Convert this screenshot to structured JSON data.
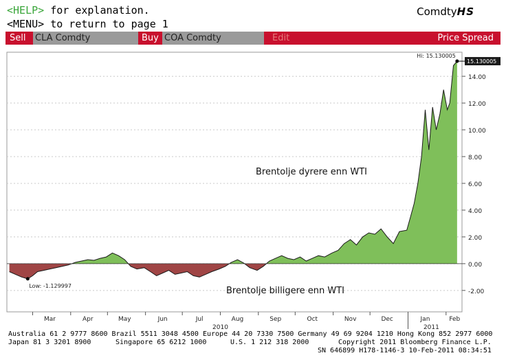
{
  "header": {
    "help_key": "<HELP>",
    "help_text": " for explanation.",
    "menu_text": "<MENU> to return to page 1",
    "ticker_prefix": "Comdty",
    "ticker_func": "HS"
  },
  "command_bar": {
    "sell_label": "Sell",
    "sell_security": "CLA Comdty",
    "buy_label": "Buy",
    "buy_security": "COA Comdty",
    "edit_label": "Edit",
    "title": "Price Spread"
  },
  "chart_data": {
    "type": "area",
    "x_unit": "date",
    "x_labels": [
      "Mar",
      "Apr",
      "May",
      "Jun",
      "Jul",
      "Aug",
      "Sep",
      "Oct",
      "Nov",
      "Dec",
      "Jan",
      "Feb"
    ],
    "year_labels": [
      "2010",
      "2011"
    ],
    "ylim": [
      -3.6,
      15.8
    ],
    "y_ticks": [
      "14.00",
      "12.00",
      "10.00",
      "8.00",
      "6.00",
      "4.00",
      "2.00",
      "0.00",
      "-2.00"
    ],
    "hi_label": "Hi: 15.130005",
    "last_value_label": "15.130005",
    "low_label": "Low: -1.129997",
    "annotation_above": "Brentolje dyrere enn WTI",
    "annotation_below": "Brentolje billigere enn WTI",
    "colors": {
      "positive": "#7fbf5a",
      "negative": "#a04545",
      "line": "#1a1a1a",
      "grid": "#c8c8c8"
    },
    "series": [
      {
        "x": [
          "2010-02-10",
          "2010-02-15",
          "2010-02-20",
          "2010-02-25",
          "2010-03-01",
          "2010-03-05",
          "2010-03-10",
          "2010-03-15",
          "2010-03-20",
          "2010-03-25",
          "2010-03-30",
          "2010-04-05",
          "2010-04-10",
          "2010-04-15",
          "2010-04-20",
          "2010-04-25",
          "2010-04-30",
          "2010-05-05",
          "2010-05-10",
          "2010-05-15",
          "2010-05-20",
          "2010-05-25",
          "2010-05-31",
          "2010-06-05",
          "2010-06-10",
          "2010-06-15",
          "2010-06-20",
          "2010-06-25",
          "2010-06-30",
          "2010-07-05",
          "2010-07-10",
          "2010-07-15",
          "2010-07-20",
          "2010-07-25",
          "2010-07-31",
          "2010-08-05",
          "2010-08-10",
          "2010-08-15",
          "2010-08-20",
          "2010-08-25",
          "2010-08-31",
          "2010-09-05",
          "2010-09-10",
          "2010-09-15",
          "2010-09-20",
          "2010-09-25",
          "2010-09-30",
          "2010-10-05",
          "2010-10-10",
          "2010-10-15",
          "2010-10-20",
          "2010-10-25",
          "2010-10-31",
          "2010-11-05",
          "2010-11-10",
          "2010-11-15",
          "2010-11-20",
          "2010-11-25",
          "2010-11-30",
          "2010-12-05",
          "2010-12-10",
          "2010-12-15",
          "2010-12-20",
          "2010-12-25",
          "2010-12-31",
          "2011-01-03",
          "2011-01-06",
          "2011-01-09",
          "2011-01-12",
          "2011-01-15",
          "2011-01-18",
          "2011-01-21",
          "2011-01-24",
          "2011-01-27",
          "2011-01-30",
          "2011-02-02",
          "2011-02-04",
          "2011-02-07",
          "2011-02-10"
        ],
        "y": [
          -0.6,
          -0.8,
          -1.0,
          -1.13,
          -0.9,
          -0.6,
          -0.5,
          -0.4,
          -0.3,
          -0.2,
          -0.1,
          0.1,
          0.2,
          0.3,
          0.25,
          0.4,
          0.5,
          0.8,
          0.6,
          0.3,
          -0.2,
          -0.4,
          -0.3,
          -0.6,
          -0.9,
          -0.7,
          -0.5,
          -0.8,
          -0.7,
          -0.6,
          -0.9,
          -1.0,
          -0.8,
          -0.6,
          -0.4,
          -0.2,
          0.1,
          0.3,
          0.05,
          -0.3,
          -0.5,
          -0.2,
          0.2,
          0.4,
          0.6,
          0.4,
          0.3,
          0.5,
          0.2,
          0.4,
          0.6,
          0.5,
          0.8,
          1.0,
          1.5,
          1.8,
          1.4,
          2.0,
          2.3,
          2.2,
          2.6,
          2.0,
          1.5,
          2.4,
          2.5,
          3.5,
          4.5,
          6.0,
          8.0,
          11.5,
          8.5,
          11.7,
          10.0,
          11.2,
          13.0,
          11.5,
          12.0,
          14.8,
          15.13
        ]
      }
    ]
  },
  "footer": {
    "line1": "Australia 61 2 9777 8600 Brazil 5511 3048 4500 Europe 44 20 7330 7500 Germany 49 69 9204 1210 Hong Kong 852 2977 6000",
    "line2_left": "Japan 81 3 3201 8900",
    "line2_mid": "Singapore 65 6212 1000",
    "line2_us": "U.S. 1 212 318 2000",
    "line2_right": "Copyright 2011 Bloomberg Finance L.P.",
    "line3": "SN 646899 H178-1146-3 10-Feb-2011 08:34:51"
  }
}
